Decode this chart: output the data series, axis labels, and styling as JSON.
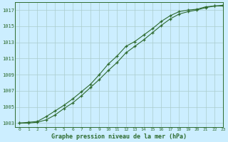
{
  "title": "Graphe pression niveau de la mer (hPa)",
  "bg_color": "#cceeff",
  "grid_color": "#aacccc",
  "line_color": "#2d6a2d",
  "xlim": [
    -0.5,
    23
  ],
  "ylim": [
    1002.5,
    1018.0
  ],
  "yticks": [
    1003,
    1005,
    1007,
    1009,
    1011,
    1013,
    1015,
    1017
  ],
  "xticks": [
    0,
    1,
    2,
    3,
    4,
    5,
    6,
    7,
    8,
    9,
    10,
    11,
    12,
    13,
    14,
    15,
    16,
    17,
    18,
    19,
    20,
    21,
    22,
    23
  ],
  "series1_x": [
    0,
    1,
    2,
    3,
    4,
    5,
    6,
    7,
    8,
    9,
    10,
    11,
    12,
    13,
    14,
    15,
    16,
    17,
    18,
    19,
    20,
    21,
    22,
    23
  ],
  "series1_y": [
    1003.0,
    1003.1,
    1003.2,
    1003.8,
    1004.5,
    1005.2,
    1006.0,
    1006.9,
    1007.8,
    1009.0,
    1010.3,
    1011.3,
    1012.5,
    1013.1,
    1013.9,
    1014.7,
    1015.6,
    1016.3,
    1016.8,
    1017.0,
    1017.1,
    1017.4,
    1017.5,
    1017.6
  ],
  "series2_x": [
    0,
    1,
    2,
    3,
    4,
    5,
    6,
    7,
    8,
    9,
    10,
    11,
    12,
    13,
    14,
    15,
    16,
    17,
    18,
    19,
    20,
    21,
    22,
    23
  ],
  "series2_y": [
    1003.0,
    1003.0,
    1003.1,
    1003.4,
    1004.0,
    1004.8,
    1005.5,
    1006.4,
    1007.4,
    1008.4,
    1009.5,
    1010.5,
    1011.7,
    1012.5,
    1013.3,
    1014.2,
    1015.1,
    1015.9,
    1016.5,
    1016.8,
    1017.0,
    1017.3,
    1017.5,
    1017.5
  ],
  "ylabel_fontsize": 5,
  "xlabel_fontsize": 6,
  "title_fontsize": 6
}
